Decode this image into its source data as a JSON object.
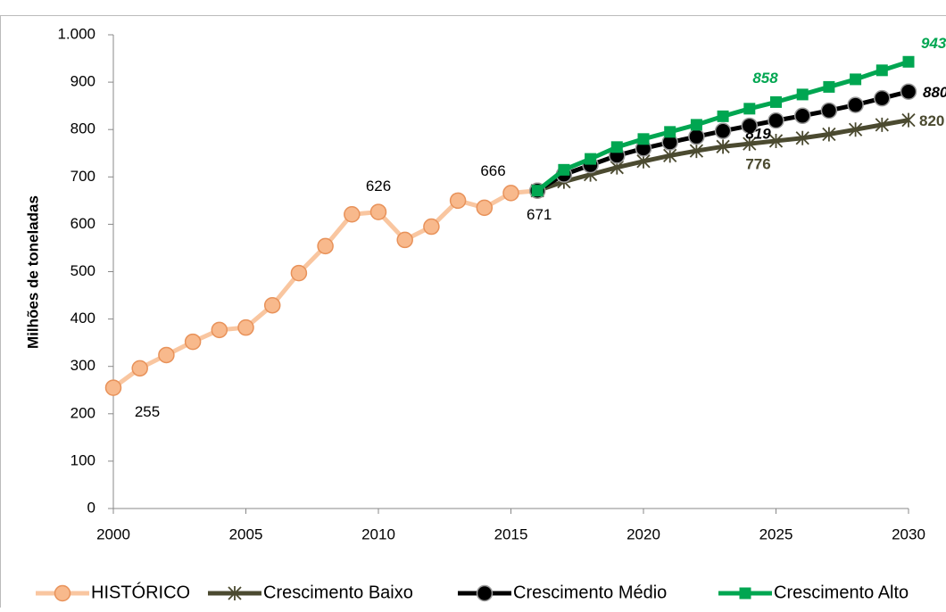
{
  "chart_data": {
    "type": "line",
    "y_label": "Milhões de toneladas",
    "x": [
      2000,
      2001,
      2002,
      2003,
      2004,
      2005,
      2006,
      2007,
      2008,
      2009,
      2010,
      2011,
      2012,
      2013,
      2014,
      2015,
      2016,
      2017,
      2018,
      2019,
      2020,
      2021,
      2022,
      2023,
      2024,
      2025,
      2026,
      2027,
      2028,
      2029,
      2030
    ],
    "xlim": [
      2000,
      2030
    ],
    "xticks": [
      2000,
      2005,
      2010,
      2015,
      2020,
      2025,
      2030
    ],
    "ylim": [
      0,
      1000
    ],
    "yticks": [
      0,
      100,
      200,
      300,
      400,
      500,
      600,
      700,
      800,
      900,
      {
        "value": 1000,
        "label": "1.000"
      }
    ],
    "grid": false,
    "legend": "bottom",
    "series": [
      {
        "name": "HISTÓRICO",
        "color": "#f9c6a0",
        "marker": "circle",
        "marker_color": "#f8b98c",
        "values": [
          255,
          296,
          324,
          352,
          377,
          382,
          429,
          497,
          554,
          621,
          626,
          567,
          595,
          650,
          635,
          666,
          671,
          null,
          null,
          null,
          null,
          null,
          null,
          null,
          null,
          null,
          null,
          null,
          null,
          null,
          null
        ],
        "labeled": [
          0,
          10,
          15,
          16
        ]
      },
      {
        "name": "Crescimento Baixo",
        "color": "#4b4a30",
        "marker": "star",
        "marker_color": "#4b4a30",
        "values": [
          null,
          null,
          null,
          null,
          null,
          null,
          null,
          null,
          null,
          null,
          null,
          null,
          null,
          null,
          null,
          null,
          671,
          690,
          705,
          720,
          733,
          745,
          755,
          764,
          770,
          776,
          782,
          790,
          800,
          810,
          820
        ],
        "labeled": [
          25,
          30
        ]
      },
      {
        "name": "Crescimento Médio",
        "color": "#000000",
        "marker": "circle",
        "marker_color": "#000000",
        "values": [
          null,
          null,
          null,
          null,
          null,
          null,
          null,
          null,
          null,
          null,
          null,
          null,
          null,
          null,
          null,
          null,
          671,
          705,
          725,
          745,
          760,
          773,
          785,
          797,
          808,
          819,
          829,
          840,
          852,
          866,
          880
        ],
        "labeled": [
          25,
          30
        ]
      },
      {
        "name": "Crescimento Alto",
        "color": "#00a651",
        "marker": "square",
        "marker_color": "#00a651",
        "values": [
          null,
          null,
          null,
          null,
          null,
          null,
          null,
          null,
          null,
          null,
          null,
          null,
          null,
          null,
          null,
          null,
          671,
          715,
          738,
          763,
          780,
          795,
          810,
          828,
          844,
          858,
          874,
          890,
          906,
          925,
          943
        ],
        "labeled": [
          25,
          30
        ]
      }
    ]
  }
}
